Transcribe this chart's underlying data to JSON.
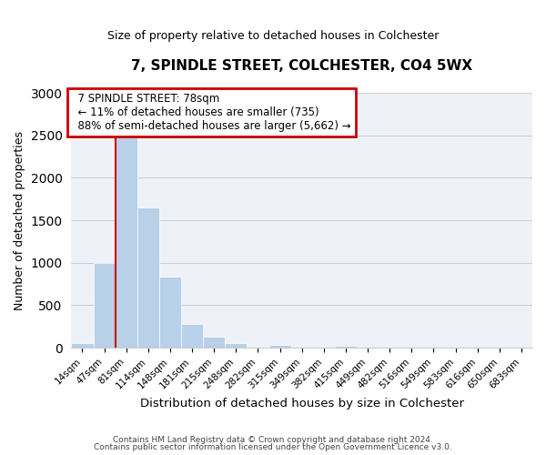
{
  "title": "7, SPINDLE STREET, COLCHESTER, CO4 5WX",
  "subtitle": "Size of property relative to detached houses in Colchester",
  "xlabel": "Distribution of detached houses by size in Colchester",
  "ylabel": "Number of detached properties",
  "bin_labels": [
    "14sqm",
    "47sqm",
    "81sqm",
    "114sqm",
    "148sqm",
    "181sqm",
    "215sqm",
    "248sqm",
    "282sqm",
    "315sqm",
    "349sqm",
    "382sqm",
    "415sqm",
    "449sqm",
    "482sqm",
    "516sqm",
    "549sqm",
    "583sqm",
    "616sqm",
    "650sqm",
    "683sqm"
  ],
  "bar_values": [
    50,
    1000,
    2470,
    1650,
    840,
    275,
    130,
    50,
    0,
    35,
    0,
    0,
    20,
    0,
    0,
    0,
    0,
    0,
    0,
    0,
    0
  ],
  "bar_color": "#b8d0e8",
  "marker_line_color": "#cc0000",
  "ylim": [
    0,
    3000
  ],
  "yticks": [
    0,
    500,
    1000,
    1500,
    2000,
    2500,
    3000
  ],
  "annotation_title": "7 SPINDLE STREET: 78sqm",
  "annotation_line1": "← 11% of detached houses are smaller (735)",
  "annotation_line2": "88% of semi-detached houses are larger (5,662) →",
  "annotation_box_color": "#cc0000",
  "footer1": "Contains HM Land Registry data © Crown copyright and database right 2024.",
  "footer2": "Contains public sector information licensed under the Open Government Licence v3.0."
}
